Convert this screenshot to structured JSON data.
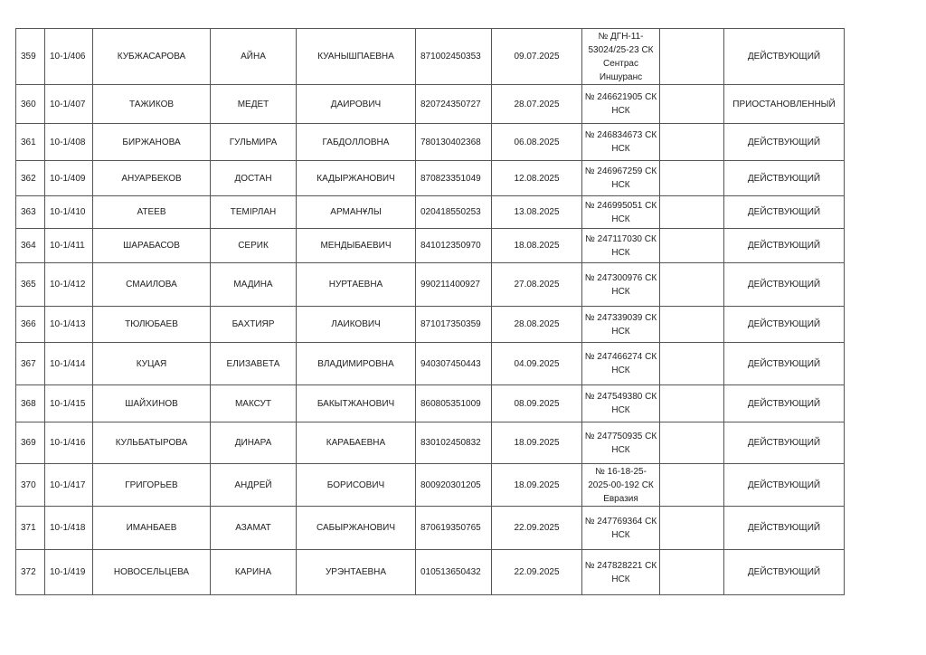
{
  "rows": [
    {
      "num": "359",
      "reg": "10-1/406",
      "last": "КУБЖАСАРОВА",
      "first": "АЙНА",
      "patronymic": "КУАНЫШПАЕВНА",
      "iin": "871002450353",
      "date": "09.07.2025",
      "policy": "№ ДГН-11-53024/25-23  СК Сентрас Иншуранс",
      "extra": "",
      "status": "ДЕЙСТВУЮЩИЙ"
    },
    {
      "num": "360",
      "reg": "10-1/407",
      "last": "ТАЖИКОВ",
      "first": "МЕДЕТ",
      "patronymic": "ДАИРОВИЧ",
      "iin": "820724350727",
      "date": "28.07.2025",
      "policy": "№ 246621905 СК НСК",
      "extra": "",
      "status": "ПРИОСТАНОВЛЕННЫЙ"
    },
    {
      "num": "361",
      "reg": "10-1/408",
      "last": "БИРЖАНОВА",
      "first": "ГУЛЬМИРА",
      "patronymic": "ГАБДОЛЛОВНА",
      "iin": "780130402368",
      "date": "06.08.2025",
      "policy": "№ 246834673 СК НСК",
      "extra": "",
      "status": "ДЕЙСТВУЮЩИЙ"
    },
    {
      "num": "362",
      "reg": "10-1/409",
      "last": "АНУАРБЕКОВ",
      "first": "ДОСТАН",
      "patronymic": "КАДЫРЖАНОВИЧ",
      "iin": "870823351049",
      "date": "12.08.2025",
      "policy": "№ 246967259 СК НСК",
      "extra": "",
      "status": "ДЕЙСТВУЮЩИЙ"
    },
    {
      "num": "363",
      "reg": "10-1/410",
      "last": "АТЕЕВ",
      "first": "ТЕМІРЛАН",
      "patronymic": "АРМАНҰЛЫ",
      "iin": "020418550253",
      "date": "13.08.2025",
      "policy": "№ 246995051 СК НСК",
      "extra": "",
      "status": "ДЕЙСТВУЮЩИЙ"
    },
    {
      "num": "364",
      "reg": "10-1/411",
      "last": "ШАРАБАСОВ",
      "first": "СЕРИК",
      "patronymic": "МЕНДЫБАЕВИЧ",
      "iin": "841012350970",
      "date": "18.08.2025",
      "policy": "№ 247117030 СК НСК",
      "extra": "",
      "status": "ДЕЙСТВУЮЩИЙ"
    },
    {
      "num": "365",
      "reg": "10-1/412",
      "last": "СМАИЛОВА",
      "first": "МАДИНА",
      "patronymic": "НУРТАЕВНА",
      "iin": "990211400927",
      "date": "27.08.2025",
      "policy": "№ 247300976 СК НСК",
      "extra": "",
      "status": "ДЕЙСТВУЮЩИЙ"
    },
    {
      "num": "366",
      "reg": "10-1/413",
      "last": "ТЮЛЮБАЕВ",
      "first": "БАХТИЯР",
      "patronymic": "ЛАИКОВИЧ",
      "iin": "871017350359",
      "date": "28.08.2025",
      "policy": "№ 247339039 СК НСК",
      "extra": "",
      "status": "ДЕЙСТВУЮЩИЙ"
    },
    {
      "num": "367",
      "reg": "10-1/414",
      "last": "КУЦАЯ",
      "first": "ЕЛИЗАВЕТА",
      "patronymic": "ВЛАДИМИРОВНА",
      "iin": "940307450443",
      "date": "04.09.2025",
      "policy": "№ 247466274 СК НСК",
      "extra": "",
      "status": "ДЕЙСТВУЮЩИЙ"
    },
    {
      "num": "368",
      "reg": "10-1/415",
      "last": "ШАЙХИНОВ",
      "first": "МАКСУТ",
      "patronymic": "БАКЫТЖАНОВИЧ",
      "iin": "860805351009",
      "date": "08.09.2025",
      "policy": "№ 247549380 СК НСК",
      "extra": "",
      "status": "ДЕЙСТВУЮЩИЙ"
    },
    {
      "num": "369",
      "reg": "10-1/416",
      "last": "КУЛЬБАТЫРОВА",
      "first": "ДИНАРА",
      "patronymic": "КАРАБАЕВНА",
      "iin": "830102450832",
      "date": "18.09.2025",
      "policy": "№ 247750935 СК НСК",
      "extra": "",
      "status": "ДЕЙСТВУЮЩИЙ"
    },
    {
      "num": "370",
      "reg": "10-1/417",
      "last": "ГРИГОРЬЕВ",
      "first": "АНДРЕЙ",
      "patronymic": "БОРИСОВИЧ",
      "iin": "800920301205",
      "date": "18.09.2025",
      "policy": "№ 16-18-25-2025-00-192 СК Евразия",
      "extra": "",
      "status": "ДЕЙСТВУЮЩИЙ"
    },
    {
      "num": "371",
      "reg": "10-1/418",
      "last": "ИМАНБАЕВ",
      "first": "АЗАМАТ",
      "patronymic": "САБЫРЖАНОВИЧ",
      "iin": "870619350765",
      "date": "22.09.2025",
      "policy": "№ 247769364 СК НСК",
      "extra": "",
      "status": "ДЕЙСТВУЮЩИЙ"
    },
    {
      "num": "372",
      "reg": "10-1/419",
      "last": "НОВОСЕЛЬЦЕВА",
      "first": "КАРИНА",
      "patronymic": "УРЭНТАЕВНА",
      "iin": "010513650432",
      "date": "22.09.2025",
      "policy": "№ 247828221 СК НСК",
      "extra": "",
      "status": "ДЕЙСТВУЮЩИЙ"
    }
  ]
}
